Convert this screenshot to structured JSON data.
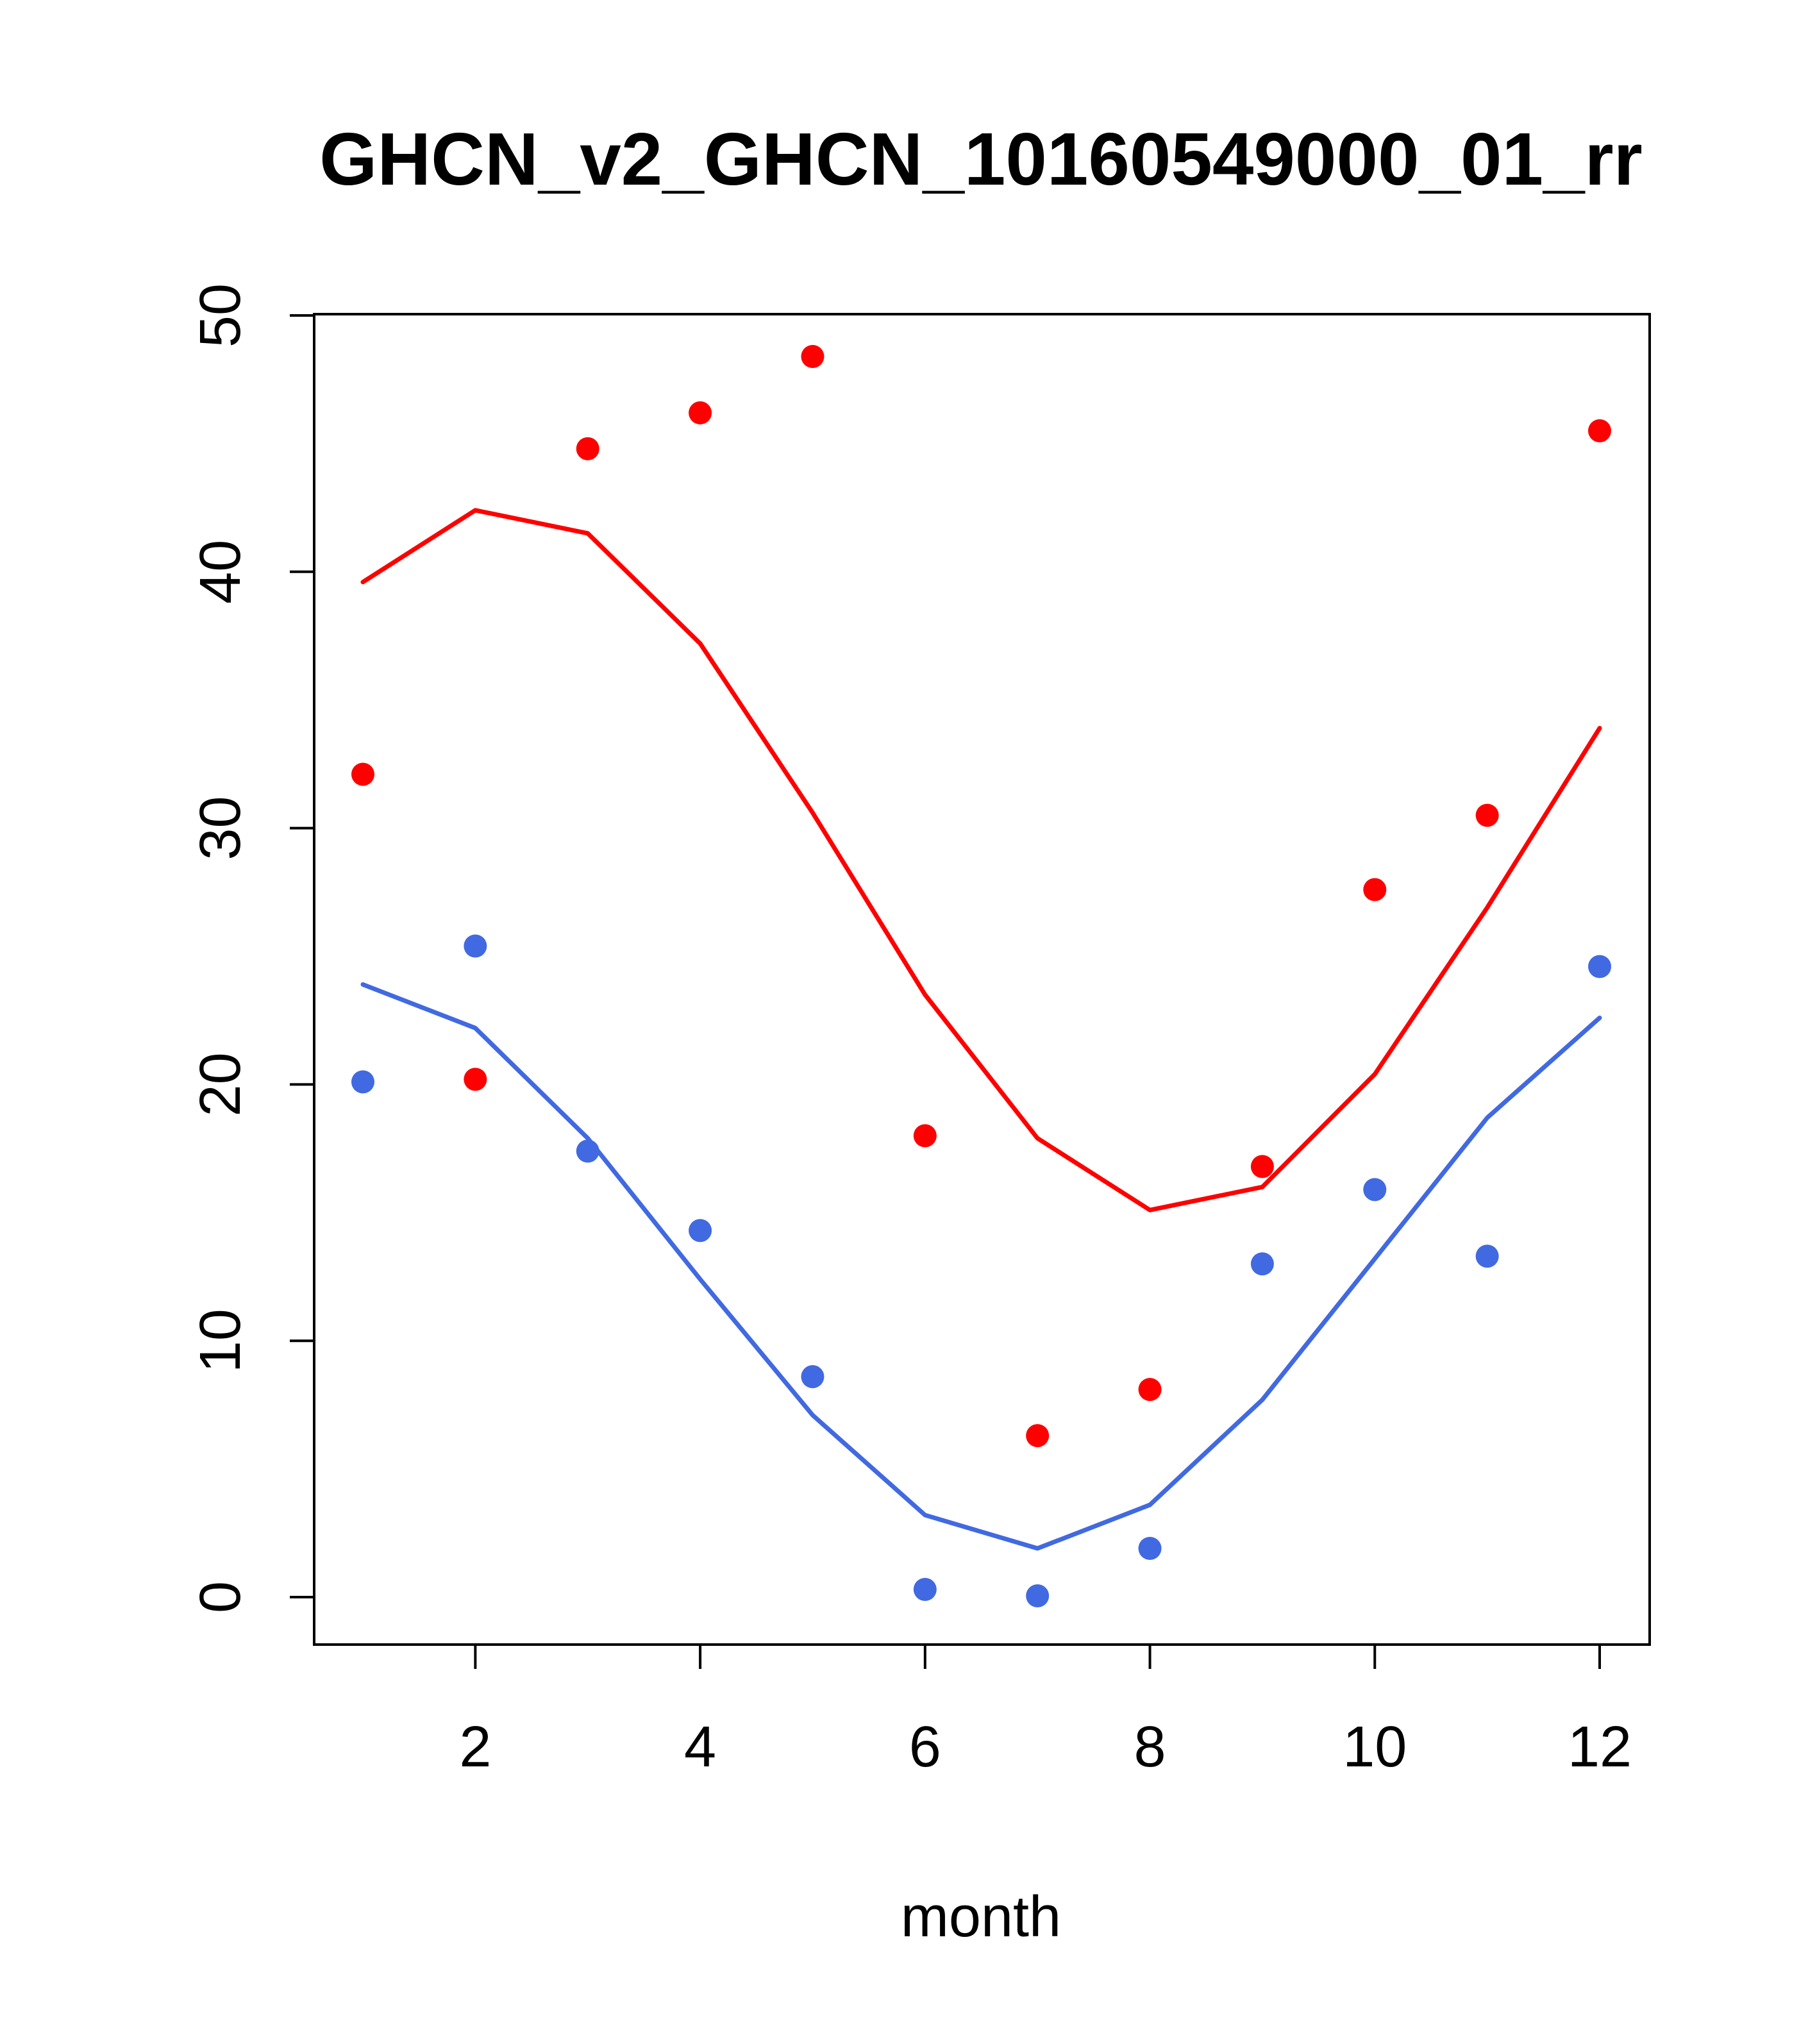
{
  "chart_data": {
    "type": "scatter",
    "title": "GHCN_v2_GHCN_10160549000_01_rr",
    "xlabel": "month",
    "ylabel": "",
    "xlim": [
      1,
      12
    ],
    "ylim": [
      0,
      50
    ],
    "x_ticks": [
      2,
      4,
      6,
      8,
      10,
      12
    ],
    "y_ticks": [
      0,
      10,
      20,
      30,
      40,
      50
    ],
    "grid": false,
    "x": [
      1,
      2,
      3,
      4,
      5,
      6,
      7,
      8,
      9,
      10,
      11,
      12
    ],
    "series": [
      {
        "name": "red points",
        "kind": "points",
        "color": "#ff0000",
        "values": [
          32.1,
          20.2,
          44.8,
          46.2,
          48.4,
          18.0,
          6.3,
          8.1,
          16.8,
          27.6,
          30.5,
          45.5
        ]
      },
      {
        "name": "red line",
        "kind": "line",
        "color": "#ff0000",
        "values": [
          39.6,
          42.4,
          41.5,
          37.2,
          30.6,
          23.5,
          17.9,
          15.1,
          16.0,
          20.4,
          26.9,
          33.9
        ]
      },
      {
        "name": "blue points",
        "kind": "points",
        "color": "#4169e1",
        "values": [
          20.1,
          25.4,
          17.4,
          14.3,
          8.6,
          0.3,
          0.05,
          1.9,
          13.0,
          15.9,
          13.3,
          24.6
        ]
      },
      {
        "name": "blue line",
        "kind": "line",
        "color": "#4169e1",
        "values": [
          23.9,
          22.2,
          17.9,
          12.4,
          7.1,
          3.2,
          1.9,
          3.6,
          7.7,
          13.2,
          18.7,
          22.6
        ]
      }
    ]
  }
}
